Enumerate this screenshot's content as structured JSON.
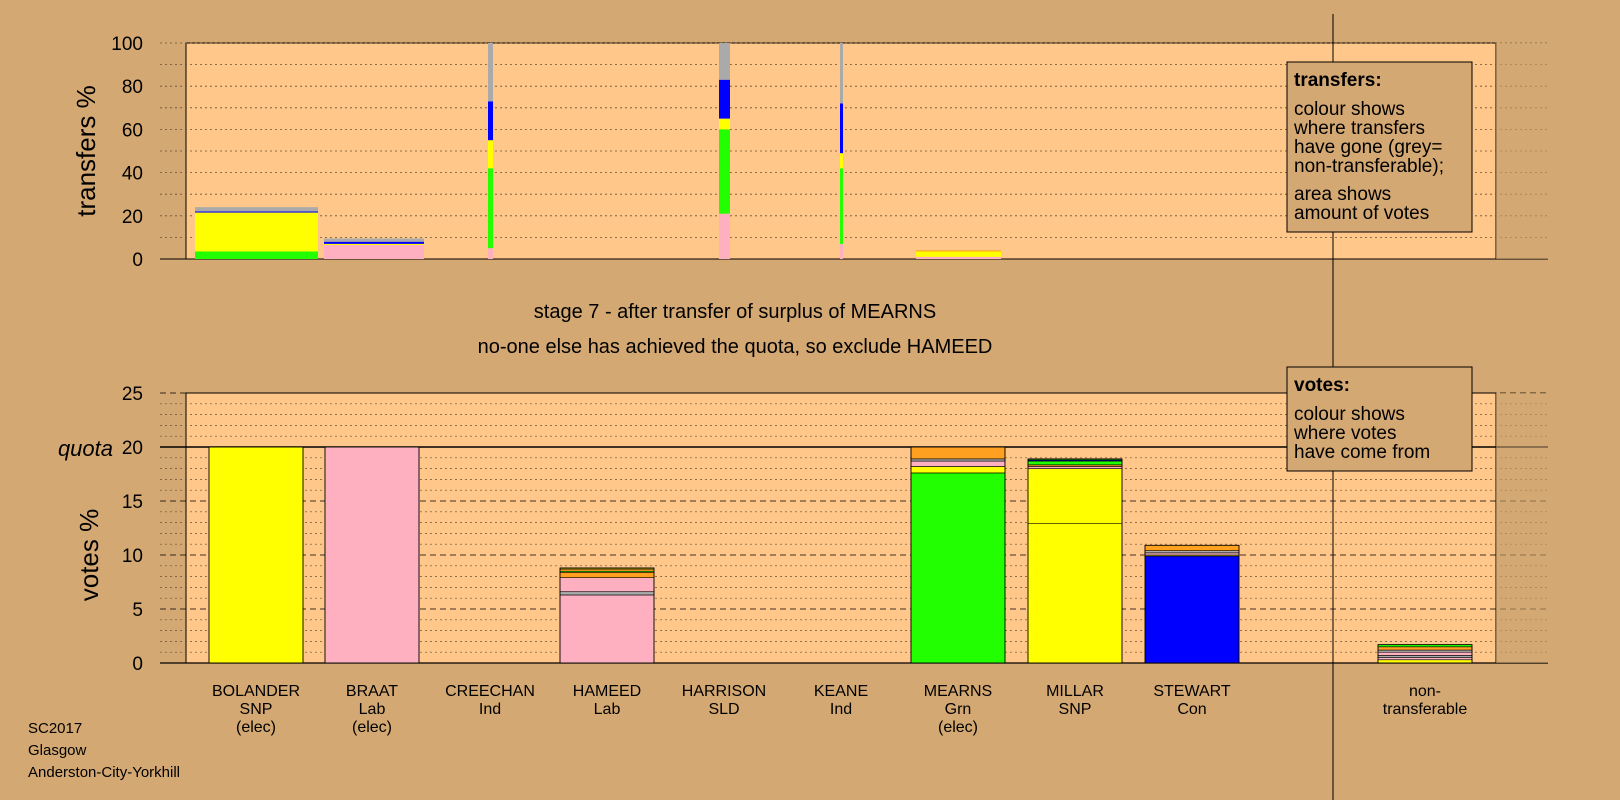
{
  "colors": {
    "background": "#d4a872",
    "plot": "#ffc78a",
    "SNP": "#ffff00",
    "Lab": "#ffb0c0",
    "Grn": "#22ff00",
    "Con": "#0000ff",
    "Ind": "#ffa020",
    "SLD": "#ffa020",
    "nontransferable": "#aaaaaa"
  },
  "stage": {
    "line1": "stage 7 - after transfer of surplus of MEARNS",
    "line2": "no-one else has achieved the quota, so exclude HAMEED"
  },
  "footer": [
    "SC2017",
    "Glasgow",
    "Anderston-City-Yorkhill"
  ],
  "legend_transfers": {
    "title": "transfers:",
    "lines1": [
      "colour shows",
      "where transfers",
      "have gone (grey=",
      "non-transferable);"
    ],
    "lines2": [
      "area shows",
      "amount of votes"
    ]
  },
  "legend_votes": {
    "title": "votes:",
    "lines": [
      "colour shows",
      "where votes",
      "have come from"
    ]
  },
  "chart_data": [
    {
      "type": "bar",
      "ylabel": "transfers %",
      "ylim": [
        0,
        100
      ],
      "yticks": [
        0,
        20,
        40,
        60,
        80,
        100
      ],
      "bars": [
        {
          "candidate": "BOLANDER",
          "segments": [
            {
              "color": "#22ff00",
              "value": 3.5
            },
            {
              "color": "#ffff00",
              "value": 18
            },
            {
              "color": "#0000ff",
              "value": 0.5
            },
            {
              "color": "#aaaaaa",
              "value": 2
            }
          ]
        },
        {
          "candidate": "BRAAT",
          "segments": [
            {
              "color": "#ffb0c0",
              "value": 6.5
            },
            {
              "color": "#ffff00",
              "value": 0.5
            },
            {
              "color": "#0000ff",
              "value": 1
            },
            {
              "color": "#aaaaaa",
              "value": 1.5
            }
          ]
        },
        {
          "candidate": "CREECHAN",
          "segments": [
            {
              "color": "#ffb0c0",
              "value": 5
            },
            {
              "color": "#22ff00",
              "value": 37
            },
            {
              "color": "#ffff00",
              "value": 13
            },
            {
              "color": "#0000ff",
              "value": 18
            },
            {
              "color": "#aaaaaa",
              "value": 27
            }
          ]
        },
        {
          "candidate": "HARRISON",
          "segments": [
            {
              "color": "#ffb0c0",
              "value": 21
            },
            {
              "color": "#22ff00",
              "value": 39
            },
            {
              "color": "#ffff00",
              "value": 5
            },
            {
              "color": "#0000ff",
              "value": 18
            },
            {
              "color": "#aaaaaa",
              "value": 17
            }
          ]
        },
        {
          "candidate": "KEANE",
          "segments": [
            {
              "color": "#ffb0c0",
              "value": 7
            },
            {
              "color": "#22ff00",
              "value": 35
            },
            {
              "color": "#ffff00",
              "value": 7
            },
            {
              "color": "#0000ff",
              "value": 23
            },
            {
              "color": "#aaaaaa",
              "value": 28
            }
          ]
        },
        {
          "candidate": "MEARNS",
          "segments": [
            {
              "color": "#ffb0c0",
              "value": 1
            },
            {
              "color": "#ffff00",
              "value": 2.5
            },
            {
              "color": "#ffa020",
              "value": 0.5
            }
          ]
        }
      ]
    },
    {
      "type": "bar",
      "ylabel": "votes %",
      "ylim": [
        0,
        25
      ],
      "yticks": [
        0,
        5,
        10,
        15,
        20,
        25
      ],
      "quota": 20,
      "quota_label": "quota",
      "bars": [
        {
          "candidate": "BOLANDER",
          "party": "SNP",
          "status": "(elec)",
          "segments": [
            {
              "color": "#ffff00",
              "value": 20
            }
          ]
        },
        {
          "candidate": "BRAAT",
          "party": "Lab",
          "status": "(elec)",
          "segments": [
            {
              "color": "#ffb0c0",
              "value": 20
            }
          ]
        },
        {
          "candidate": "CREECHAN",
          "party": "Ind",
          "status": "",
          "segments": []
        },
        {
          "candidate": "HAMEED",
          "party": "Lab",
          "status": "",
          "segments": [
            {
              "color": "#ffb0c0",
              "value": 6.3
            },
            {
              "color": "#aaaaaa",
              "value": 0.3
            },
            {
              "color": "#ffb0c0",
              "value": 1.3
            },
            {
              "color": "#ffa020",
              "value": 0.5
            },
            {
              "color": "#22ff00",
              "value": 0.1
            },
            {
              "color": "#ffa020",
              "value": 0.2
            },
            {
              "color": "#ffff00",
              "value": 0.1
            }
          ]
        },
        {
          "candidate": "HARRISON",
          "party": "SLD",
          "status": "",
          "segments": []
        },
        {
          "candidate": "KEANE",
          "party": "Ind",
          "status": "",
          "segments": []
        },
        {
          "candidate": "MEARNS",
          "party": "Grn",
          "status": "(elec)",
          "segments": [
            {
              "color": "#22ff00",
              "value": 17.6
            },
            {
              "color": "#ffff00",
              "value": 0.6
            },
            {
              "color": "#ffb0c0",
              "value": 0.5
            },
            {
              "color": "#aaaaaa",
              "value": 0.2
            },
            {
              "color": "#ffa020",
              "value": 1.1
            }
          ]
        },
        {
          "candidate": "MILLAR",
          "party": "SNP",
          "status": "",
          "segments": [
            {
              "color": "#ffff00",
              "value": 12.9
            },
            {
              "color": "#ffff00",
              "value": 5.1
            },
            {
              "color": "#ffb0c0",
              "value": 0.2
            },
            {
              "color": "#ffa020",
              "value": 0.15
            },
            {
              "color": "#22ff00",
              "value": 0.35
            },
            {
              "color": "#0000ff",
              "value": 0.1
            },
            {
              "color": "#22ff00",
              "value": 0.1
            }
          ]
        },
        {
          "candidate": "STEWART",
          "party": "Con",
          "status": "",
          "segments": [
            {
              "color": "#0000ff",
              "value": 9.9
            },
            {
              "color": "#ffff00",
              "value": 0.1
            },
            {
              "color": "#ffb0c0",
              "value": 0.2
            },
            {
              "color": "#aaaaaa",
              "value": 0.2
            },
            {
              "color": "#ffa020",
              "value": 0.5
            }
          ]
        },
        {
          "candidate": "non-",
          "party": "transferable",
          "status": "",
          "nontransferable": true,
          "segments": [
            {
              "color": "#ffff00",
              "value": 0.3
            },
            {
              "color": "#ffb0c0",
              "value": 0.2
            },
            {
              "color": "#aaaaaa",
              "value": 0.2
            },
            {
              "color": "#ffb0c0",
              "value": 0.3
            },
            {
              "color": "#aaaaaa",
              "value": 0.2
            },
            {
              "color": "#ffa020",
              "value": 0.3
            },
            {
              "color": "#22ff00",
              "value": 0.2
            }
          ]
        }
      ]
    }
  ]
}
